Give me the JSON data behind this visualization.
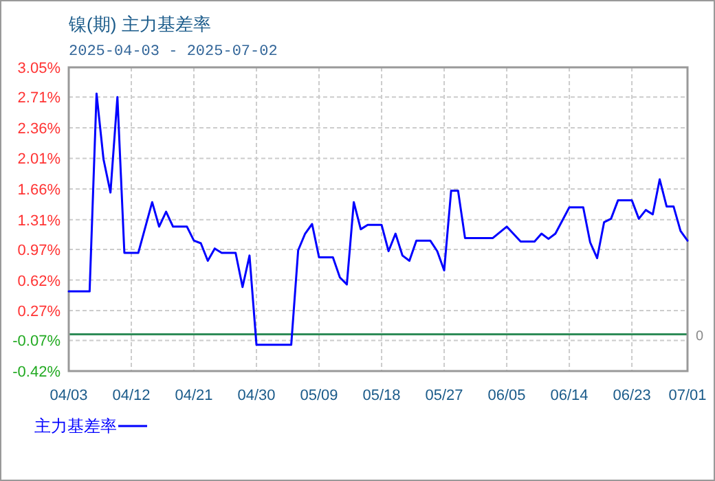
{
  "chart_data": {
    "type": "line",
    "title": "镍(期) 主力基差率",
    "subtitle": "2025-04-03 - 2025-07-02",
    "x": [
      "2025-04-03",
      "2025-04-06",
      "2025-04-07",
      "2025-04-08",
      "2025-04-09",
      "2025-04-10",
      "2025-04-11",
      "2025-04-13",
      "2025-04-15",
      "2025-04-16",
      "2025-04-17",
      "2025-04-18",
      "2025-04-20",
      "2025-04-21",
      "2025-04-22",
      "2025-04-23",
      "2025-04-24",
      "2025-04-25",
      "2025-04-27",
      "2025-04-28",
      "2025-04-29",
      "2025-04-30",
      "2025-05-05",
      "2025-05-06",
      "2025-05-07",
      "2025-05-08",
      "2025-05-09",
      "2025-05-11",
      "2025-05-12",
      "2025-05-13",
      "2025-05-14",
      "2025-05-15",
      "2025-05-16",
      "2025-05-18",
      "2025-05-19",
      "2025-05-20",
      "2025-05-21",
      "2025-05-22",
      "2025-05-23",
      "2025-05-25",
      "2025-05-26",
      "2025-05-27",
      "2025-05-28",
      "2025-05-29",
      "2025-05-30",
      "2025-06-03",
      "2025-06-05",
      "2025-06-07",
      "2025-06-09",
      "2025-06-10",
      "2025-06-11",
      "2025-06-12",
      "2025-06-14",
      "2025-06-16",
      "2025-06-17",
      "2025-06-18",
      "2025-06-19",
      "2025-06-20",
      "2025-06-21",
      "2025-06-23",
      "2025-06-24",
      "2025-06-25",
      "2025-06-26",
      "2025-06-27",
      "2025-06-28",
      "2025-06-29",
      "2025-06-30",
      "2025-07-01"
    ],
    "series": [
      {
        "name": "主力基差率",
        "color": "#0000ff",
        "values": [
          0.49,
          0.49,
          2.75,
          2.0,
          1.62,
          2.71,
          0.93,
          0.93,
          1.51,
          1.23,
          1.4,
          1.23,
          1.23,
          1.07,
          1.04,
          0.84,
          0.98,
          0.93,
          0.93,
          0.54,
          0.9,
          -0.12,
          -0.12,
          0.96,
          1.15,
          1.26,
          0.88,
          0.88,
          0.65,
          0.57,
          1.51,
          1.2,
          1.25,
          1.25,
          0.95,
          1.15,
          0.9,
          0.84,
          1.07,
          1.07,
          0.95,
          0.73,
          1.64,
          1.64,
          1.1,
          1.1,
          1.23,
          1.06,
          1.06,
          1.15,
          1.09,
          1.15,
          1.45,
          1.45,
          1.05,
          0.87,
          1.28,
          1.32,
          1.53,
          1.53,
          1.32,
          1.42,
          1.37,
          1.77,
          1.46,
          1.46,
          1.18,
          1.07
        ]
      }
    ],
    "xlim": [
      "2025-04-03",
      "2025-07-01"
    ],
    "xticks": [
      {
        "value": "2025-04-03",
        "label": "04/03"
      },
      {
        "value": "2025-04-12",
        "label": "04/12"
      },
      {
        "value": "2025-04-21",
        "label": "04/21"
      },
      {
        "value": "2025-04-30",
        "label": "04/30"
      },
      {
        "value": "2025-05-09",
        "label": "05/09"
      },
      {
        "value": "2025-05-18",
        "label": "05/18"
      },
      {
        "value": "2025-05-27",
        "label": "05/27"
      },
      {
        "value": "2025-06-05",
        "label": "06/05"
      },
      {
        "value": "2025-06-14",
        "label": "06/14"
      },
      {
        "value": "2025-06-23",
        "label": "06/23"
      },
      {
        "value": "2025-07-01",
        "label": "07/01"
      }
    ],
    "ylim": [
      -0.42,
      3.05
    ],
    "yticks": [
      {
        "value": -0.42,
        "label": "-0.42%"
      },
      {
        "value": -0.07,
        "label": "-0.07%"
      },
      {
        "value": 0.27,
        "label": "0.27%"
      },
      {
        "value": 0.62,
        "label": "0.62%"
      },
      {
        "value": 0.97,
        "label": "0.97%"
      },
      {
        "value": 1.31,
        "label": "1.31%"
      },
      {
        "value": 1.66,
        "label": "1.66%"
      },
      {
        "value": 2.01,
        "label": "2.01%"
      },
      {
        "value": 2.36,
        "label": "2.36%"
      },
      {
        "value": 2.71,
        "label": "2.71%"
      },
      {
        "value": 3.05,
        "label": "3.05%"
      }
    ],
    "ref_lines": [
      {
        "axis": "y",
        "value": 0,
        "label": "0",
        "color": "#2e8b57"
      }
    ],
    "grid": true,
    "legend": "bottom"
  }
}
